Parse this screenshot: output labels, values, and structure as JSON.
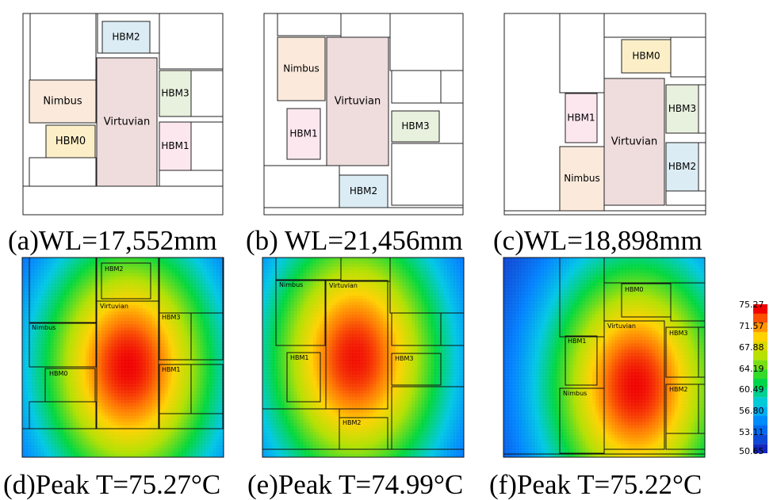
{
  "colors": {
    "virtuvian": "#efdcdc",
    "nimbus": "#fbeadc",
    "hbm0": "#fcefc8",
    "hbm1": "#fde7ef",
    "hbm2": "#dcecf4",
    "hbm3": "#e8f0de",
    "outline": "#222222"
  },
  "chiplets": {
    "virtuvian": "Virtuvian",
    "nimbus": "Nimbus",
    "hbm0": "HBM0",
    "hbm1": "HBM1",
    "hbm2": "HBM2",
    "hbm3": "HBM3"
  },
  "captions": {
    "a": "(a)WL=17,552mm",
    "b": "(b)  WL=21,456mm",
    "c": "(c)WL=18,898mm",
    "d": "(d)Peak  T=75.27°C",
    "e": "(e)Peak  T=74.99°C",
    "f": "(f)Peak  T=75.22°C"
  },
  "colorbar": {
    "ticks": [
      "75.27",
      "71.57",
      "67.88",
      "64.19",
      "60.49",
      "56.80",
      "53.11",
      "50.65"
    ]
  },
  "thermal": {
    "d": {
      "peak": 75.27
    },
    "e": {
      "peak": 74.99
    },
    "f": {
      "peak": 75.22
    }
  }
}
